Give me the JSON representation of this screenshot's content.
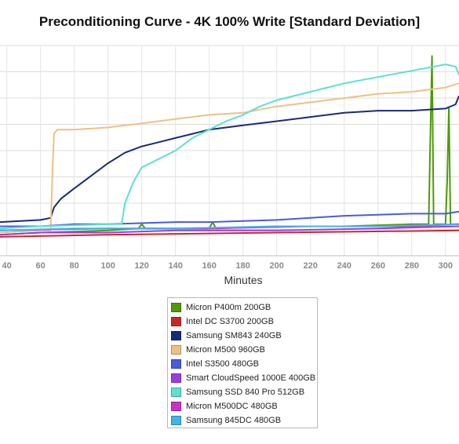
{
  "chart_data": {
    "type": "line",
    "title": "Preconditioning Curve - 4K 100% Write [Standard Deviation]",
    "xlabel": "Minutes",
    "ylabel": "",
    "xlim": [
      36,
      308
    ],
    "ylim": [
      0,
      1
    ],
    "x_ticks": [
      40,
      60,
      80,
      100,
      120,
      140,
      160,
      180,
      200,
      220,
      240,
      260,
      280,
      300
    ],
    "grid": true,
    "legend_position": "bottom",
    "series": [
      {
        "name": "Micron P400m 200GB",
        "color": "#4e9a06",
        "points": [
          [
            36,
            0.1
          ],
          [
            60,
            0.11
          ],
          [
            100,
            0.12
          ],
          [
            118,
            0.13
          ],
          [
            120,
            0.15
          ],
          [
            122,
            0.13
          ],
          [
            160,
            0.13
          ],
          [
            162,
            0.16
          ],
          [
            164,
            0.13
          ],
          [
            200,
            0.14
          ],
          [
            240,
            0.14
          ],
          [
            280,
            0.15
          ],
          [
            290,
            0.15
          ],
          [
            291,
            0.55
          ],
          [
            292,
            0.95
          ],
          [
            293,
            0.15
          ],
          [
            300,
            0.15
          ],
          [
            301,
            0.35
          ],
          [
            302,
            0.7
          ],
          [
            303,
            0.15
          ],
          [
            308,
            0.15
          ]
        ]
      },
      {
        "name": "Intel DC S3700 200GB",
        "color": "#c62828",
        "points": [
          [
            36,
            0.09
          ],
          [
            100,
            0.1
          ],
          [
            200,
            0.11
          ],
          [
            308,
            0.12
          ]
        ]
      },
      {
        "name": "Samsung SM843 240GB",
        "color": "#1a2a7a",
        "points": [
          [
            36,
            0.16
          ],
          [
            60,
            0.17
          ],
          [
            66,
            0.18
          ],
          [
            68,
            0.23
          ],
          [
            72,
            0.27
          ],
          [
            80,
            0.32
          ],
          [
            90,
            0.38
          ],
          [
            100,
            0.44
          ],
          [
            110,
            0.49
          ],
          [
            120,
            0.52
          ],
          [
            130,
            0.54
          ],
          [
            140,
            0.56
          ],
          [
            150,
            0.58
          ],
          [
            160,
            0.6
          ],
          [
            170,
            0.61
          ],
          [
            180,
            0.62
          ],
          [
            200,
            0.64
          ],
          [
            220,
            0.66
          ],
          [
            240,
            0.68
          ],
          [
            260,
            0.69
          ],
          [
            280,
            0.69
          ],
          [
            300,
            0.7
          ],
          [
            306,
            0.72
          ],
          [
            308,
            0.76
          ]
        ]
      },
      {
        "name": "Micron M500 960GB",
        "color": "#f0c080",
        "points": [
          [
            36,
            0.11
          ],
          [
            60,
            0.12
          ],
          [
            66,
            0.12
          ],
          [
            67,
            0.38
          ],
          [
            68,
            0.58
          ],
          [
            70,
            0.6
          ],
          [
            80,
            0.6
          ],
          [
            100,
            0.61
          ],
          [
            110,
            0.62
          ],
          [
            120,
            0.63
          ],
          [
            140,
            0.65
          ],
          [
            160,
            0.67
          ],
          [
            180,
            0.68
          ],
          [
            200,
            0.71
          ],
          [
            220,
            0.73
          ],
          [
            240,
            0.75
          ],
          [
            260,
            0.77
          ],
          [
            280,
            0.78
          ],
          [
            300,
            0.8
          ],
          [
            308,
            0.82
          ]
        ]
      },
      {
        "name": "Intel S3500 480GB",
        "color": "#4a5bdb",
        "points": [
          [
            36,
            0.14
          ],
          [
            60,
            0.14
          ],
          [
            80,
            0.15
          ],
          [
            100,
            0.15
          ],
          [
            140,
            0.16
          ],
          [
            160,
            0.16
          ],
          [
            200,
            0.17
          ],
          [
            240,
            0.19
          ],
          [
            280,
            0.2
          ],
          [
            300,
            0.2
          ],
          [
            308,
            0.21
          ]
        ]
      },
      {
        "name": "Smart CloudSpeed 1000E 400GB",
        "color": "#9c3ce0",
        "points": [
          [
            36,
            0.1
          ],
          [
            60,
            0.11
          ],
          [
            100,
            0.11
          ],
          [
            140,
            0.12
          ],
          [
            200,
            0.12
          ],
          [
            260,
            0.13
          ],
          [
            308,
            0.14
          ]
        ]
      },
      {
        "name": "Samsung SSD 840 Pro 512GB",
        "color": "#5ce0d0",
        "points": [
          [
            36,
            0.13
          ],
          [
            60,
            0.14
          ],
          [
            100,
            0.15
          ],
          [
            108,
            0.15
          ],
          [
            110,
            0.25
          ],
          [
            115,
            0.35
          ],
          [
            120,
            0.42
          ],
          [
            130,
            0.46
          ],
          [
            140,
            0.5
          ],
          [
            150,
            0.56
          ],
          [
            160,
            0.6
          ],
          [
            170,
            0.64
          ],
          [
            180,
            0.67
          ],
          [
            190,
            0.71
          ],
          [
            200,
            0.74
          ],
          [
            220,
            0.78
          ],
          [
            240,
            0.82
          ],
          [
            260,
            0.85
          ],
          [
            280,
            0.88
          ],
          [
            300,
            0.91
          ],
          [
            306,
            0.9
          ],
          [
            308,
            0.86
          ]
        ]
      },
      {
        "name": "Micron M500DC 480GB",
        "color": "#c832c8",
        "points": [
          [
            36,
            0.12
          ],
          [
            100,
            0.13
          ],
          [
            160,
            0.13
          ],
          [
            220,
            0.14
          ],
          [
            280,
            0.14
          ],
          [
            308,
            0.15
          ]
        ]
      },
      {
        "name": "Samsung 845DC 480GB",
        "color": "#40b4e8",
        "points": [
          [
            36,
            0.12
          ],
          [
            80,
            0.13
          ],
          [
            140,
            0.13
          ],
          [
            200,
            0.14
          ],
          [
            260,
            0.14
          ],
          [
            308,
            0.15
          ]
        ]
      }
    ]
  }
}
